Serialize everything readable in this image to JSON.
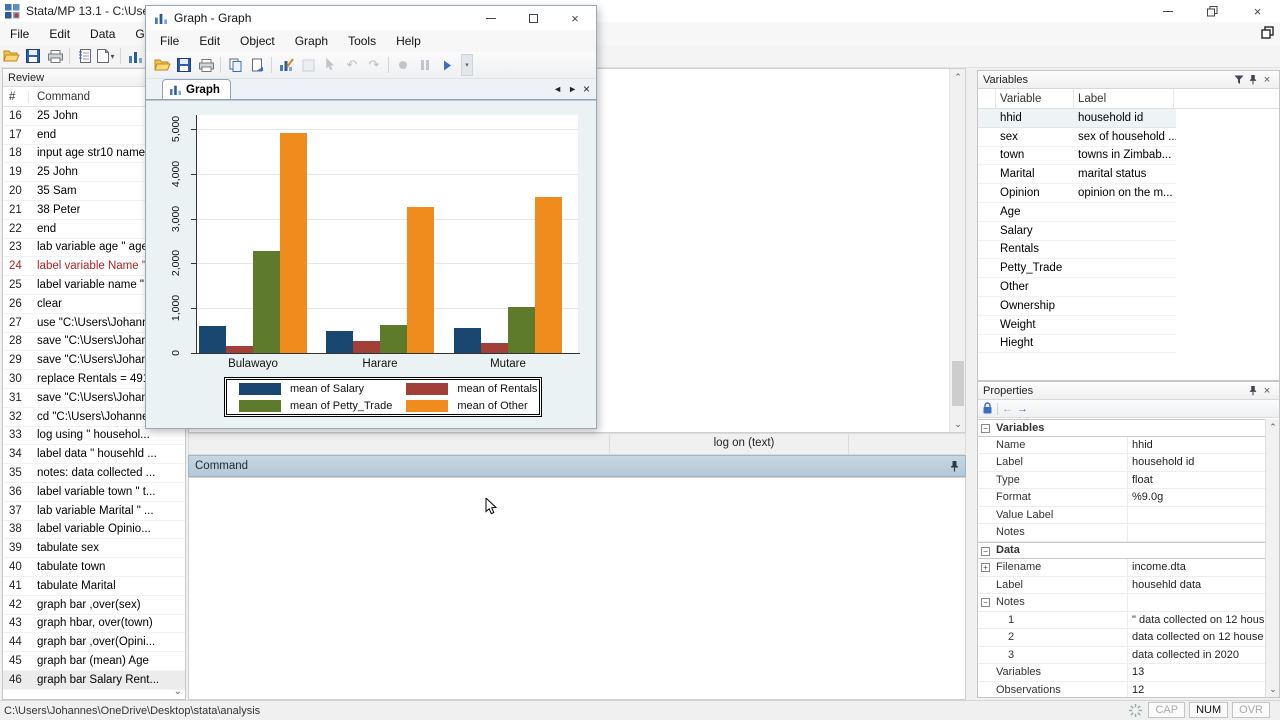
{
  "main_window": {
    "title": "Stata/MP 13.1 - C:\\Users",
    "menus": [
      "File",
      "Edit",
      "Data",
      "Graph"
    ],
    "statusbar": {
      "path": "C:\\Users\\Johannes\\OneDrive\\Desktop\\stata\\analysis",
      "indicators": [
        "CAP",
        "NUM",
        "OVR"
      ]
    }
  },
  "review": {
    "title": "Review",
    "columns": [
      "#",
      "Command"
    ],
    "rows": [
      {
        "n": "16",
        "cmd": "25 John"
      },
      {
        "n": "17",
        "cmd": "end"
      },
      {
        "n": "18",
        "cmd": "input age str10 name"
      },
      {
        "n": "19",
        "cmd": "25 John"
      },
      {
        "n": "20",
        "cmd": "35 Sam"
      },
      {
        "n": "21",
        "cmd": "38 Peter"
      },
      {
        "n": "22",
        "cmd": "end"
      },
      {
        "n": "23",
        "cmd": "lab variable age \" age..."
      },
      {
        "n": "24",
        "cmd": "label variable Name \"...",
        "red": true
      },
      {
        "n": "25",
        "cmd": "label variable name \"..."
      },
      {
        "n": "26",
        "cmd": "clear"
      },
      {
        "n": "27",
        "cmd": "use \"C:\\Users\\Johann..."
      },
      {
        "n": "28",
        "cmd": "save \"C:\\Users\\Johan..."
      },
      {
        "n": "29",
        "cmd": "save \"C:\\Users\\Johan..."
      },
      {
        "n": "30",
        "cmd": "replace Rentals = 491 ..."
      },
      {
        "n": "31",
        "cmd": "save \"C:\\Users\\Johan..."
      },
      {
        "n": "32",
        "cmd": "cd \"C:\\Users\\Johanne..."
      },
      {
        "n": "33",
        "cmd": "log using \" househol..."
      },
      {
        "n": "34",
        "cmd": "label data \" househld ..."
      },
      {
        "n": "35",
        "cmd": "notes: data collected ..."
      },
      {
        "n": "36",
        "cmd": "label variable town \" t..."
      },
      {
        "n": "37",
        "cmd": "lab variable Marital \" ..."
      },
      {
        "n": "38",
        "cmd": "label variable Opinio..."
      },
      {
        "n": "39",
        "cmd": "tabulate sex"
      },
      {
        "n": "40",
        "cmd": "tabulate town"
      },
      {
        "n": "41",
        "cmd": "tabulate Marital"
      },
      {
        "n": "42",
        "cmd": "graph bar ,over(sex)"
      },
      {
        "n": "43",
        "cmd": "graph hbar, over(town)"
      },
      {
        "n": "44",
        "cmd": "graph bar ,over(Opini..."
      },
      {
        "n": "45",
        "cmd": "graph bar (mean) Age"
      },
      {
        "n": "46",
        "cmd": "graph bar Salary Rent...",
        "sel": true
      }
    ]
  },
  "results": {
    "log_status": "log on (text)"
  },
  "command_panel": {
    "title": "Command"
  },
  "variables_panel": {
    "title": "Variables",
    "columns": [
      "Variable",
      "Label"
    ],
    "rows": [
      {
        "v": "hhid",
        "l": "household id",
        "sel": true
      },
      {
        "v": "sex",
        "l": "sex of household ..."
      },
      {
        "v": "town",
        "l": "towns in Zimbab..."
      },
      {
        "v": "Marital",
        "l": "marital status"
      },
      {
        "v": "Opinion",
        "l": "opinion on the m..."
      },
      {
        "v": "Age",
        "l": ""
      },
      {
        "v": "Salary",
        "l": ""
      },
      {
        "v": "Rentals",
        "l": ""
      },
      {
        "v": "Petty_Trade",
        "l": ""
      },
      {
        "v": "Other",
        "l": ""
      },
      {
        "v": "Ownership",
        "l": ""
      },
      {
        "v": "Weight",
        "l": ""
      },
      {
        "v": "Hieght",
        "l": ""
      }
    ]
  },
  "properties_panel": {
    "title": "Properties",
    "rows": [
      {
        "label": "Variables",
        "type": "section",
        "expander": "minus"
      },
      {
        "label": "Name",
        "value": "hhid"
      },
      {
        "label": "Label",
        "value": "household id"
      },
      {
        "label": "Type",
        "value": "float"
      },
      {
        "label": "Format",
        "value": "%9.0g"
      },
      {
        "label": "Value Label",
        "value": ""
      },
      {
        "label": "Notes",
        "value": ""
      },
      {
        "label": "Data",
        "type": "section",
        "expander": "minus"
      },
      {
        "label": "Filename",
        "value": "income.dta",
        "expander": "plus"
      },
      {
        "label": "Label",
        "value": "househld data"
      },
      {
        "label": "Notes",
        "value": "",
        "expander": "minus"
      },
      {
        "label": "1",
        "value": "\" data collected on 12 hous",
        "indent": 1
      },
      {
        "label": "2",
        "value": "data collected on 12 house",
        "indent": 1
      },
      {
        "label": "3",
        "value": "data collected in 2020",
        "indent": 1
      },
      {
        "label": "Variables",
        "value": "13"
      },
      {
        "label": "Observations",
        "value": "12"
      }
    ]
  },
  "graph_window": {
    "title": "Graph - Graph",
    "menus": [
      "File",
      "Edit",
      "Object",
      "Graph",
      "Tools",
      "Help"
    ],
    "tab_label": "Graph"
  },
  "chart_data": {
    "type": "bar",
    "title": "",
    "categories": [
      "Bulawayo",
      "Harare",
      "Mutare"
    ],
    "series": [
      {
        "name": "mean of Salary",
        "color": "#1a476f",
        "values": [
          610,
          500,
          560
        ]
      },
      {
        "name": "mean of Rentals",
        "color": "#a04038",
        "values": [
          160,
          270,
          230
        ]
      },
      {
        "name": "mean of Petty_Trade",
        "color": "#5d7b2a",
        "values": [
          2270,
          630,
          1020
        ]
      },
      {
        "name": "mean of Other",
        "color": "#f08c1e",
        "values": [
          4900,
          3270,
          3480
        ]
      }
    ],
    "ylim": [
      0,
      5300
    ],
    "yticks": [
      0,
      1000,
      2000,
      3000,
      4000,
      5000
    ],
    "ytick_labels": [
      "0",
      "1,000",
      "2,000",
      "3,000",
      "4,000",
      "5,000"
    ],
    "grid": true,
    "legend_position": "bottom"
  }
}
